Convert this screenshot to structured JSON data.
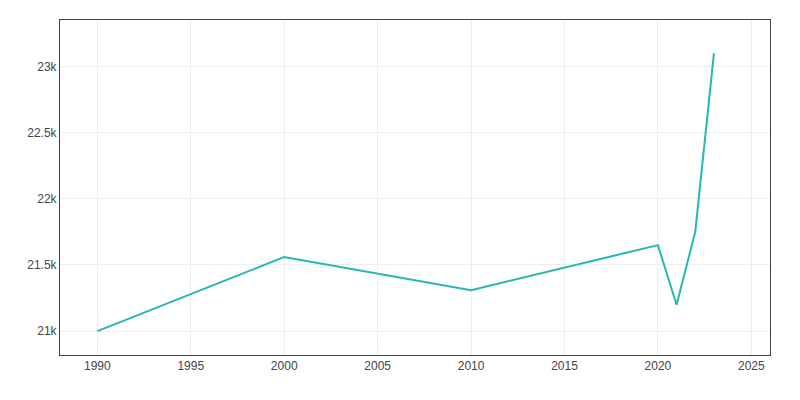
{
  "chart_data": {
    "type": "line",
    "x": [
      1990,
      2000,
      2010,
      2020,
      2021,
      2022,
      2023
    ],
    "values": [
      21000,
      21560,
      21310,
      21650,
      21200,
      21750,
      23100
    ],
    "color": "#2ab5b5",
    "xlim": [
      1988,
      2026
    ],
    "ylim": [
      20820,
      23350
    ],
    "xticks": [
      1990,
      1995,
      2000,
      2005,
      2010,
      2015,
      2020,
      2025
    ],
    "yticks": [
      {
        "value": 21000,
        "label": "21k"
      },
      {
        "value": 21500,
        "label": "21.5k"
      },
      {
        "value": 22000,
        "label": "22k"
      },
      {
        "value": 22500,
        "label": "22.5k"
      },
      {
        "value": 23000,
        "label": "23k"
      }
    ],
    "grid": true
  }
}
